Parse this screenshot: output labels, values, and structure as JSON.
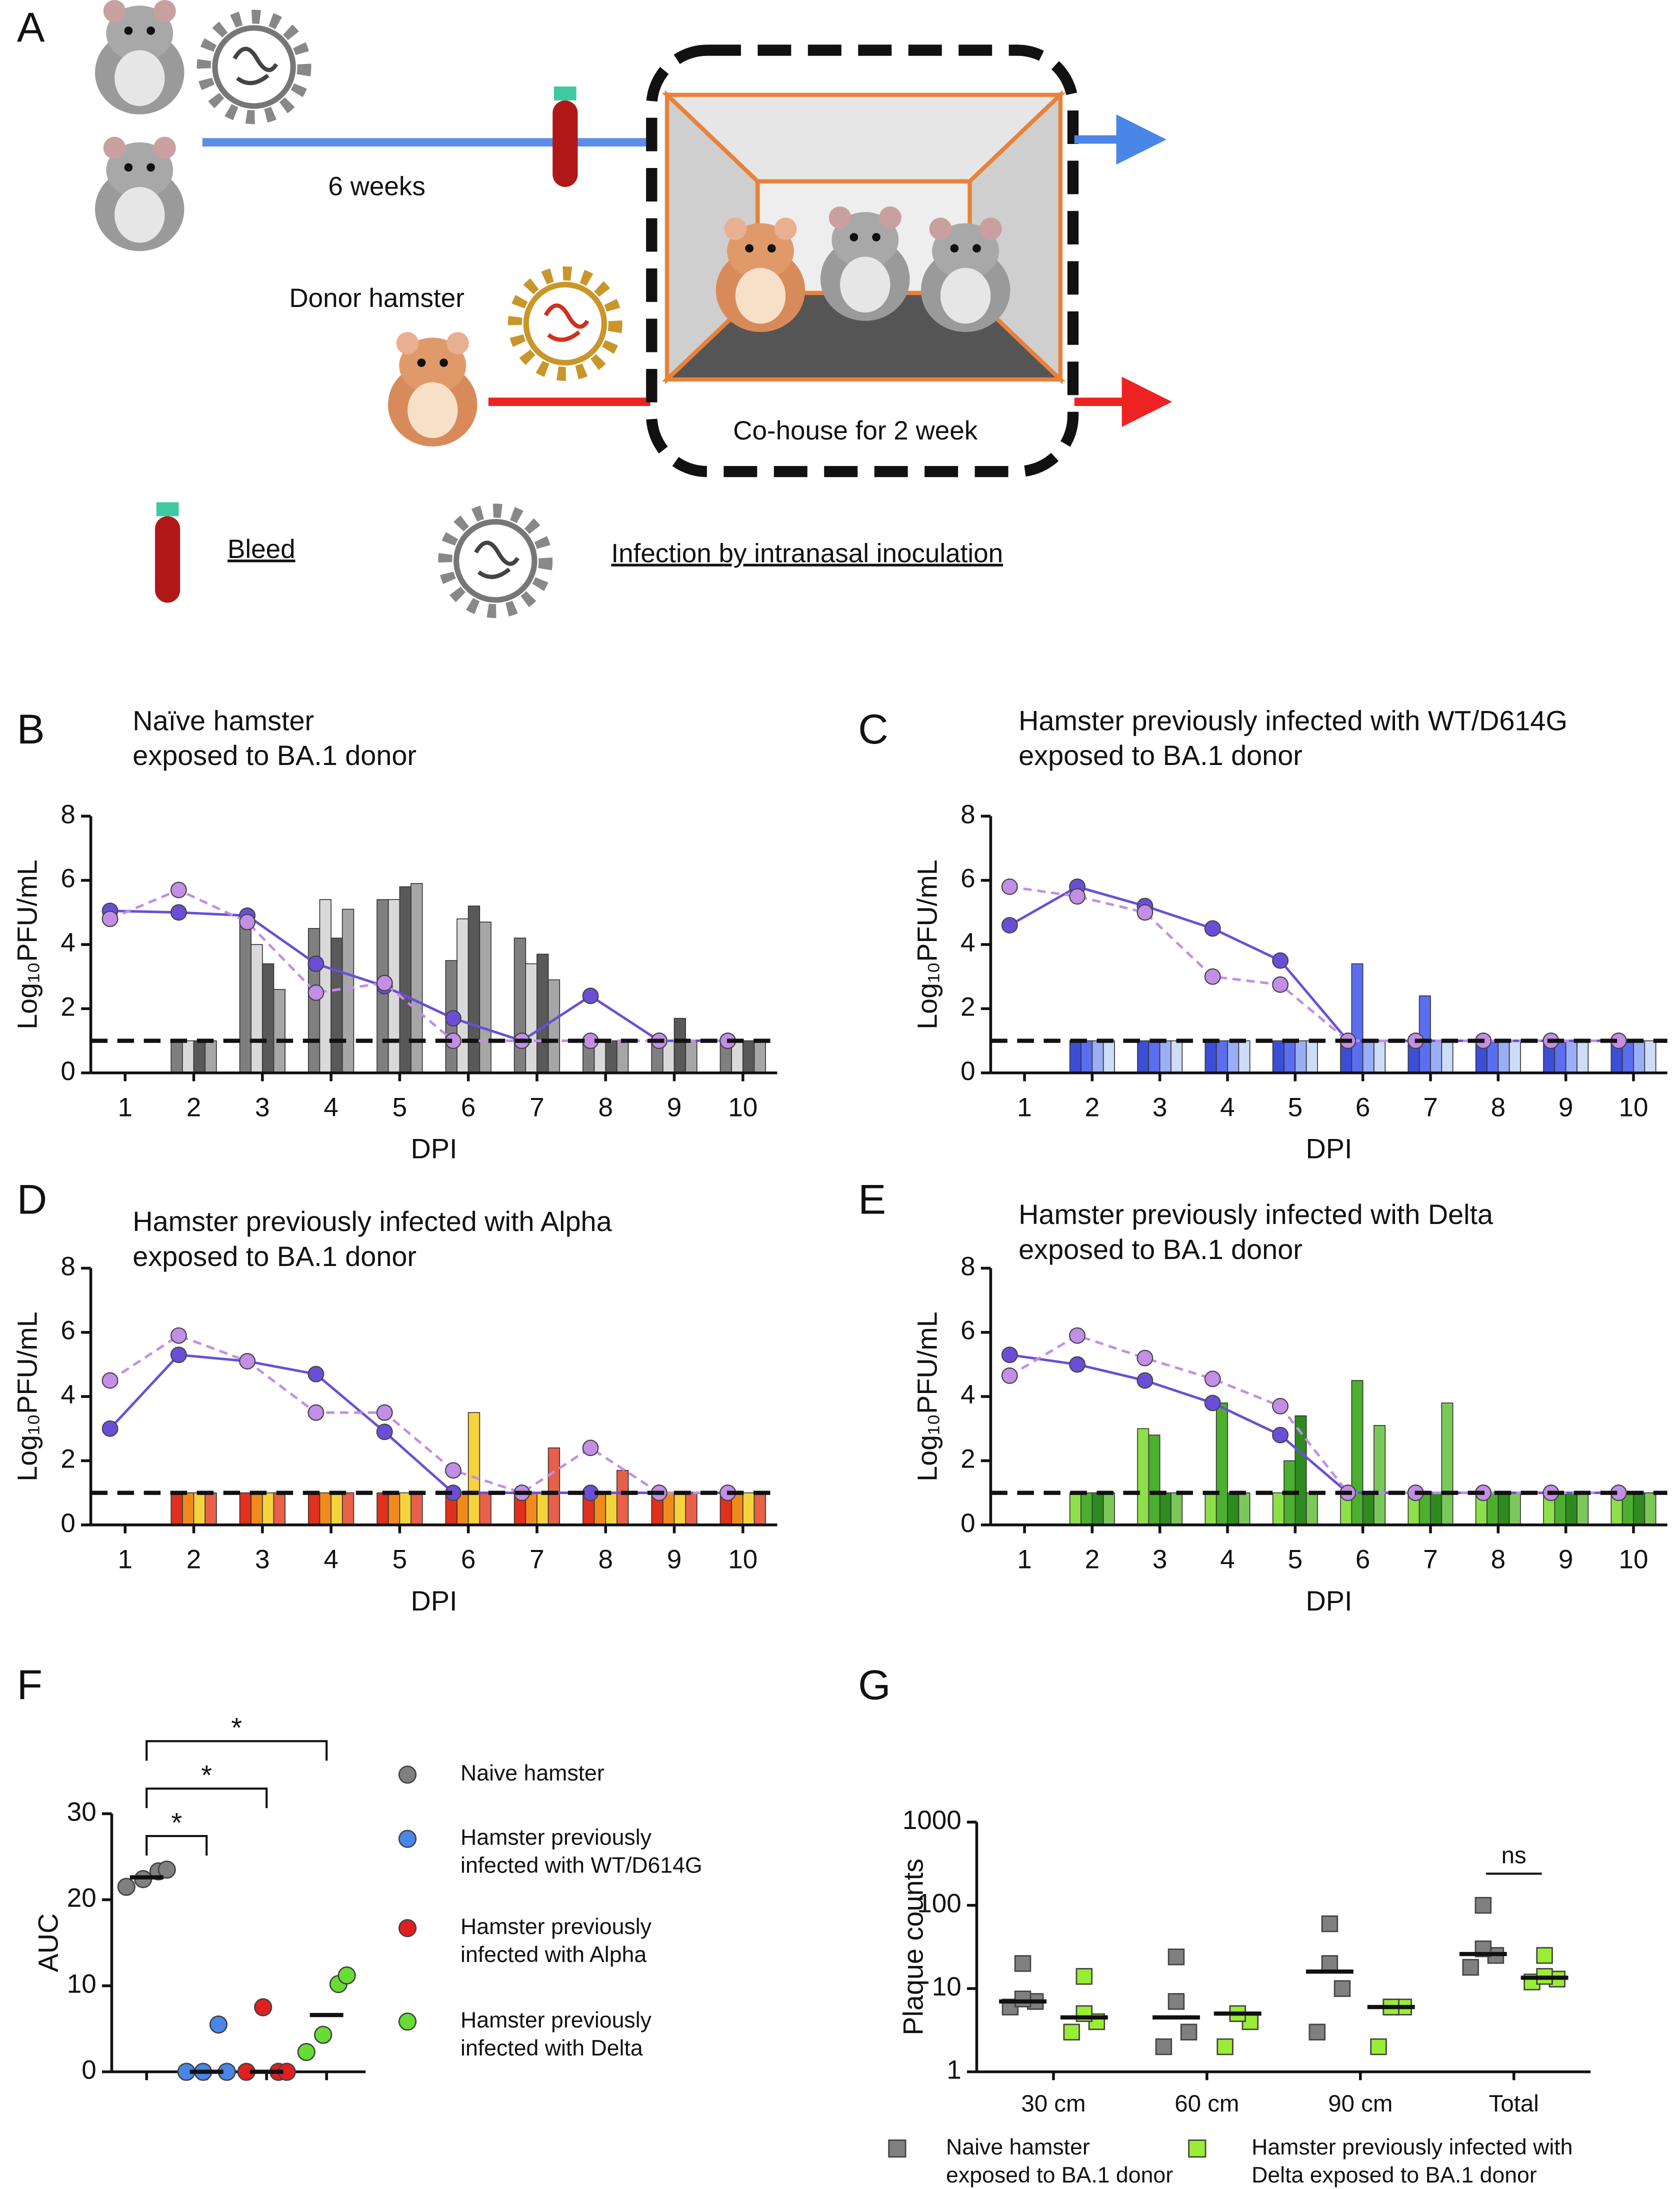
{
  "panel_labels": [
    "A",
    "B",
    "C",
    "D",
    "E",
    "F",
    "G"
  ],
  "diagram": {
    "duration": "6 weeks",
    "donor": "Donor hamster",
    "cohouse": "Co-house for 2 week",
    "legend_bleed": "Bleed",
    "legend_infection": "Infection by intranasal inoculation"
  },
  "chart_data": [
    {
      "type": "bar",
      "title": "Naïve hamster\nexposed to BA.1 donor",
      "x_label": "DPI",
      "y_label": "Log₁₀PFU/mL",
      "categories": [
        "1",
        "2",
        "3",
        "4",
        "5",
        "6",
        "7",
        "8",
        "9",
        "10"
      ],
      "ylim": [
        0,
        8
      ],
      "yticks": [
        0,
        2,
        4,
        6,
        8
      ],
      "reference_line": 1,
      "series": [
        {
          "color": "#7f7f7f",
          "values": [
            null,
            1,
            4.6,
            4.5,
            5.4,
            3.5,
            4.2,
            1,
            1,
            1
          ]
        },
        {
          "color": "#d9d9d9",
          "values": [
            null,
            1,
            4.0,
            5.4,
            5.4,
            4.8,
            3.4,
            1,
            1,
            1
          ]
        },
        {
          "color": "#595959",
          "values": [
            null,
            1,
            3.4,
            4.2,
            5.8,
            5.2,
            3.7,
            1,
            1.7,
            1
          ]
        },
        {
          "color": "#a6a6a6",
          "values": [
            null,
            1,
            2.6,
            5.1,
            5.9,
            4.7,
            2.9,
            1,
            1,
            1
          ]
        },
        {
          "color": "#6a4fd6",
          "mark": "line",
          "style": "solid",
          "values": [
            5.05,
            5.0,
            4.9,
            3.4,
            2.7,
            1.7,
            1.0,
            2.4,
            1.0,
            1.0
          ]
        },
        {
          "color": "#c38ee6",
          "mark": "line",
          "style": "dashed",
          "values": [
            4.8,
            5.7,
            4.7,
            2.5,
            2.8,
            1.0,
            1.0,
            1.0,
            1.0,
            1.0
          ]
        }
      ]
    },
    {
      "type": "bar",
      "title": "Hamster previously infected with WT/D614G\nexposed to BA.1 donor",
      "x_label": "DPI",
      "y_label": "Log₁₀PFU/mL",
      "categories": [
        "1",
        "2",
        "3",
        "4",
        "5",
        "6",
        "7",
        "8",
        "9",
        "10"
      ],
      "ylim": [
        0,
        8
      ],
      "yticks": [
        0,
        2,
        4,
        6,
        8
      ],
      "reference_line": 1,
      "series": [
        {
          "color": "#3b4fd6",
          "values": [
            null,
            1,
            1,
            1,
            1,
            1,
            1,
            1,
            1,
            1
          ]
        },
        {
          "color": "#5b6ef0",
          "values": [
            null,
            1,
            1,
            1,
            1,
            3.4,
            2.4,
            1,
            1,
            1
          ]
        },
        {
          "color": "#9aaef5",
          "values": [
            null,
            1,
            1,
            1,
            1,
            1,
            1,
            1,
            1,
            1
          ]
        },
        {
          "color": "#cddcf7",
          "values": [
            null,
            1,
            1,
            1,
            1,
            1,
            1,
            1,
            1,
            1
          ]
        },
        {
          "color": "#6a4fd6",
          "mark": "line",
          "style": "solid",
          "values": [
            4.6,
            5.8,
            5.2,
            4.5,
            3.5,
            1.0,
            1.0,
            1.0,
            1.0,
            1.0
          ]
        },
        {
          "color": "#c38ee6",
          "mark": "line",
          "style": "dashed",
          "values": [
            5.8,
            5.5,
            5.0,
            3.0,
            2.75,
            1.0,
            1.0,
            1.0,
            1.0,
            1.0
          ]
        }
      ]
    },
    {
      "type": "bar",
      "title": "Hamster previously infected with Alpha\nexposed to BA.1 donor",
      "x_label": "DPI",
      "y_label": "Log₁₀PFU/mL",
      "categories": [
        "1",
        "2",
        "3",
        "4",
        "5",
        "6",
        "7",
        "8",
        "9",
        "10"
      ],
      "ylim": [
        0,
        8
      ],
      "yticks": [
        0,
        2,
        4,
        6,
        8
      ],
      "reference_line": 1,
      "series": [
        {
          "color": "#e0301e",
          "values": [
            null,
            1,
            1,
            1,
            1,
            1,
            1,
            1,
            1,
            1
          ]
        },
        {
          "color": "#f08a1c",
          "values": [
            null,
            1,
            1,
            1,
            1,
            1,
            1,
            1,
            1,
            1
          ]
        },
        {
          "color": "#f5d33c",
          "values": [
            null,
            1,
            1,
            1,
            1,
            3.5,
            1,
            1,
            1,
            1
          ]
        },
        {
          "color": "#e8604a",
          "values": [
            null,
            1,
            1,
            1,
            1,
            1,
            2.4,
            1.7,
            1,
            1
          ]
        },
        {
          "color": "#6a4fd6",
          "mark": "line",
          "style": "solid",
          "values": [
            3.0,
            5.3,
            5.1,
            4.7,
            2.9,
            1.0,
            1.0,
            1.0,
            1.0,
            1.0
          ]
        },
        {
          "color": "#c38ee6",
          "mark": "line",
          "style": "dashed",
          "values": [
            4.5,
            5.9,
            5.1,
            3.5,
            3.5,
            1.7,
            1.0,
            2.4,
            1.0,
            1.0
          ]
        }
      ]
    },
    {
      "type": "bar",
      "title": "Hamster previously infected with Delta\nexposed to BA.1 donor",
      "x_label": "DPI",
      "y_label": "Log₁₀PFU/mL",
      "categories": [
        "1",
        "2",
        "3",
        "4",
        "5",
        "6",
        "7",
        "8",
        "9",
        "10"
      ],
      "ylim": [
        0,
        8
      ],
      "yticks": [
        0,
        2,
        4,
        6,
        8
      ],
      "reference_line": 1,
      "series": [
        {
          "color": "#8de04a",
          "values": [
            null,
            1,
            3.0,
            1,
            1,
            1,
            1,
            1,
            1,
            1
          ]
        },
        {
          "color": "#4caf30",
          "values": [
            null,
            1,
            2.8,
            3.8,
            2.0,
            4.5,
            1,
            1,
            1,
            1
          ]
        },
        {
          "color": "#2e8b20",
          "values": [
            null,
            1,
            1,
            1,
            3.4,
            1,
            1,
            1,
            1,
            1
          ]
        },
        {
          "color": "#7bc85a",
          "values": [
            null,
            1,
            1,
            1,
            1,
            3.1,
            3.8,
            1,
            1,
            1
          ]
        },
        {
          "color": "#6a4fd6",
          "mark": "line",
          "style": "solid",
          "values": [
            5.3,
            5.0,
            4.5,
            3.8,
            2.8,
            1.0,
            1.0,
            1.0,
            1.0,
            1.0
          ]
        },
        {
          "color": "#c38ee6",
          "mark": "line",
          "style": "dashed",
          "values": [
            4.65,
            5.9,
            5.2,
            4.55,
            3.7,
            1.0,
            1.0,
            1.0,
            1.0,
            1.0
          ]
        }
      ]
    },
    {
      "type": "strip",
      "y_label": "AUC",
      "ylim": [
        0,
        30
      ],
      "yticks": [
        0,
        10,
        20,
        30
      ],
      "brackets": [
        "*",
        "*",
        "*"
      ],
      "series": [
        {
          "name": "Naive hamster",
          "color": "#808080",
          "values": [
            21.5,
            23.3,
            22.4,
            23.5
          ],
          "center_line": 22.6
        },
        {
          "name": "Hamster previously\ninfected with WT/D614G",
          "color": "#4a86e8",
          "values": [
            0,
            5.5,
            0,
            0
          ],
          "center_line": 0
        },
        {
          "name": "Hamster previously\ninfected with Alpha",
          "color": "#e02020",
          "values": [
            0,
            0,
            7.5,
            0
          ],
          "center_line": 0
        },
        {
          "name": "Hamster previously\ninfected with Delta",
          "color": "#66dd33",
          "values": [
            2.3,
            10.2,
            4.3,
            11.2
          ],
          "center_line": 6.6
        }
      ]
    },
    {
      "type": "dotplot",
      "log_y": true,
      "y_label": "Plaque counts",
      "categories": [
        "30 cm",
        "60 cm",
        "90 cm",
        "Total"
      ],
      "ylim": [
        1,
        1000
      ],
      "yticks": [
        1,
        10,
        100,
        1000
      ],
      "annotation": "ns",
      "legend": "bottom",
      "series": [
        {
          "name": "Naive hamster\nexposed to BA.1 donor",
          "color": "#808080",
          "values": [
            [
              6,
              20,
              7,
              7.5
            ],
            [
              2,
              24,
              3,
              7
            ],
            [
              3,
              60,
              10,
              20
            ],
            [
              18,
              100,
              25,
              30
            ]
          ],
          "center_line": [
            7,
            4.5,
            16,
            26
          ]
        },
        {
          "name": "Hamster previously infected with\nDelta exposed to BA.1 donor",
          "color": "#99ee33",
          "values": [
            [
              3,
              14,
              4,
              5
            ],
            [
              2,
              5,
              4,
              5
            ],
            [
              2,
              6,
              6,
              6
            ],
            [
              12,
              25,
              13,
              14
            ]
          ],
          "center_line": [
            4.5,
            5,
            6,
            13.5
          ]
        }
      ]
    }
  ]
}
